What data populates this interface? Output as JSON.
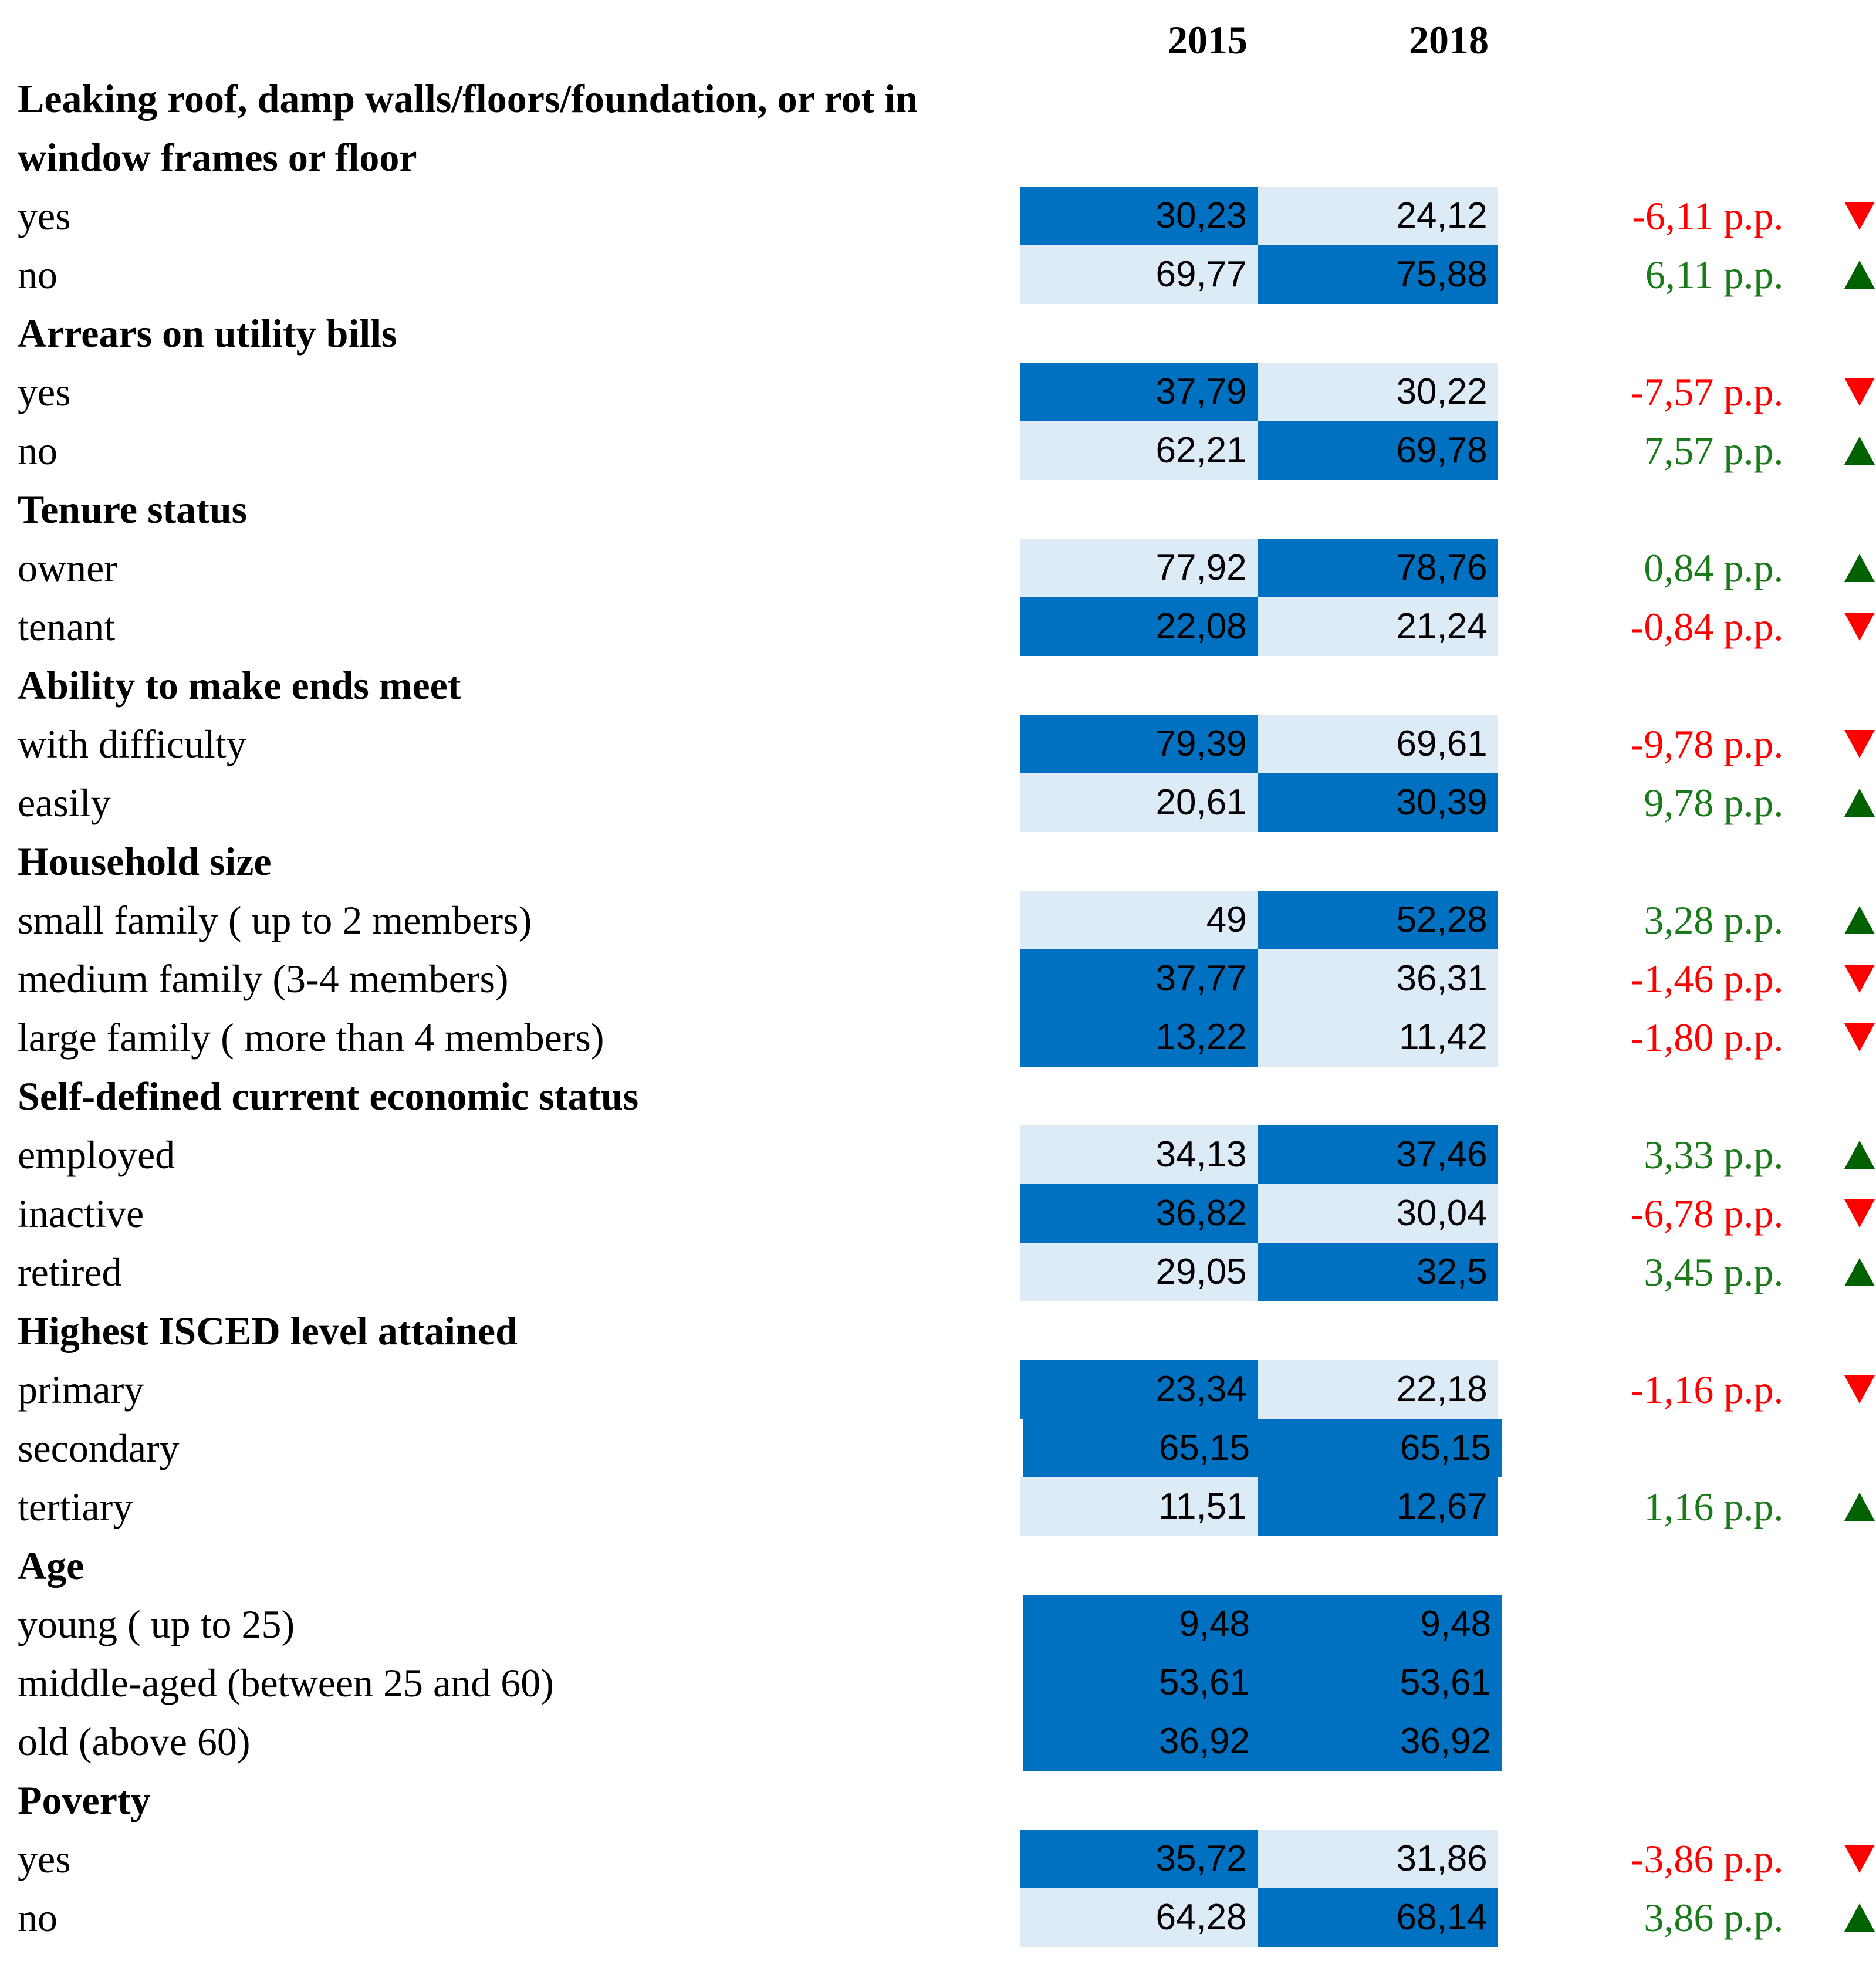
{
  "header": {
    "years": [
      "2015",
      "2018"
    ]
  },
  "sections": [
    {
      "title": "Leaking roof, damp walls/floors/foundation, or rot in window frames or floor",
      "rows": [
        {
          "label": "yes",
          "values": [
            "30,23",
            "24,12"
          ],
          "change": "-6,11 p.p.",
          "trend": "down"
        },
        {
          "label": "no",
          "values": [
            "69,77",
            "75,88"
          ],
          "change": "6,11 p.p.",
          "trend": "up"
        }
      ]
    },
    {
      "title": "Arrears on utility bills",
      "rows": [
        {
          "label": "yes",
          "values": [
            "37,79",
            "30,22"
          ],
          "change": "-7,57 p.p.",
          "trend": "down"
        },
        {
          "label": "no",
          "values": [
            "62,21",
            "69,78"
          ],
          "change": "7,57 p.p.",
          "trend": "up"
        }
      ]
    },
    {
      "title": "Tenure status",
      "rows": [
        {
          "label": "owner",
          "values": [
            "77,92",
            "78,76"
          ],
          "change": "0,84 p.p.",
          "trend": "up"
        },
        {
          "label": "tenant",
          "values": [
            "22,08",
            "21,24"
          ],
          "change": "-0,84 p.p.",
          "trend": "down"
        }
      ]
    },
    {
      "title": "Ability to make ends meet",
      "rows": [
        {
          "label": "with difficulty",
          "values": [
            "79,39",
            "69,61"
          ],
          "change": "-9,78 p.p.",
          "trend": "down"
        },
        {
          "label": "easily",
          "values": [
            "20,61",
            "30,39"
          ],
          "change": "9,78 p.p.",
          "trend": "up"
        }
      ]
    },
    {
      "title": "Household size",
      "rows": [
        {
          "label": "small family ( up to 2 members)",
          "values": [
            "49",
            "52,28"
          ],
          "change": "3,28 p.p.",
          "trend": "up"
        },
        {
          "label": "medium family (3-4 members)",
          "values": [
            "37,77",
            "36,31"
          ],
          "change": "-1,46 p.p.",
          "trend": "down"
        },
        {
          "label": "large family ( more than 4 members)",
          "values": [
            "13,22",
            "11,42"
          ],
          "change": "-1,80 p.p.",
          "trend": "down"
        }
      ]
    },
    {
      "title": "Self-defined current economic status",
      "rows": [
        {
          "label": "employed",
          "values": [
            "34,13",
            "37,46"
          ],
          "change": "3,33 p.p.",
          "trend": "up"
        },
        {
          "label": "inactive",
          "values": [
            "36,82",
            "30,04"
          ],
          "change": "-6,78 p.p.",
          "trend": "down"
        },
        {
          "label": "retired",
          "values": [
            "29,05",
            "32,5"
          ],
          "change": "3,45 p.p.",
          "trend": "up"
        }
      ]
    },
    {
      "title": "Highest ISCED level attained",
      "rows": [
        {
          "label": "primary",
          "values": [
            "23,34",
            "22,18"
          ],
          "change": "-1,16 p.p.",
          "trend": "down"
        },
        {
          "label": "secondary",
          "values": [
            "65,15",
            "65,15"
          ]
        },
        {
          "label": "tertiary",
          "values": [
            "11,51",
            "12,67"
          ],
          "change": "1,16 p.p.",
          "trend": "up"
        }
      ]
    },
    {
      "title": "Age",
      "rows": [
        {
          "label": "young ( up to 25)",
          "values": [
            "9,48",
            "9,48"
          ]
        },
        {
          "label": "middle-aged (between 25 and 60)",
          "values": [
            "53,61",
            "53,61"
          ]
        },
        {
          "label": "old (above 60)",
          "values": [
            "36,92",
            "36,92"
          ]
        }
      ]
    },
    {
      "title": "Poverty",
      "rows": [
        {
          "label": "yes",
          "values": [
            "35,72",
            "31,86"
          ],
          "change": "-3,86 p.p.",
          "trend": "down"
        },
        {
          "label": "no",
          "values": [
            "64,28",
            "68,14"
          ],
          "change": "3,86 p.p.",
          "trend": "up"
        }
      ]
    }
  ]
}
